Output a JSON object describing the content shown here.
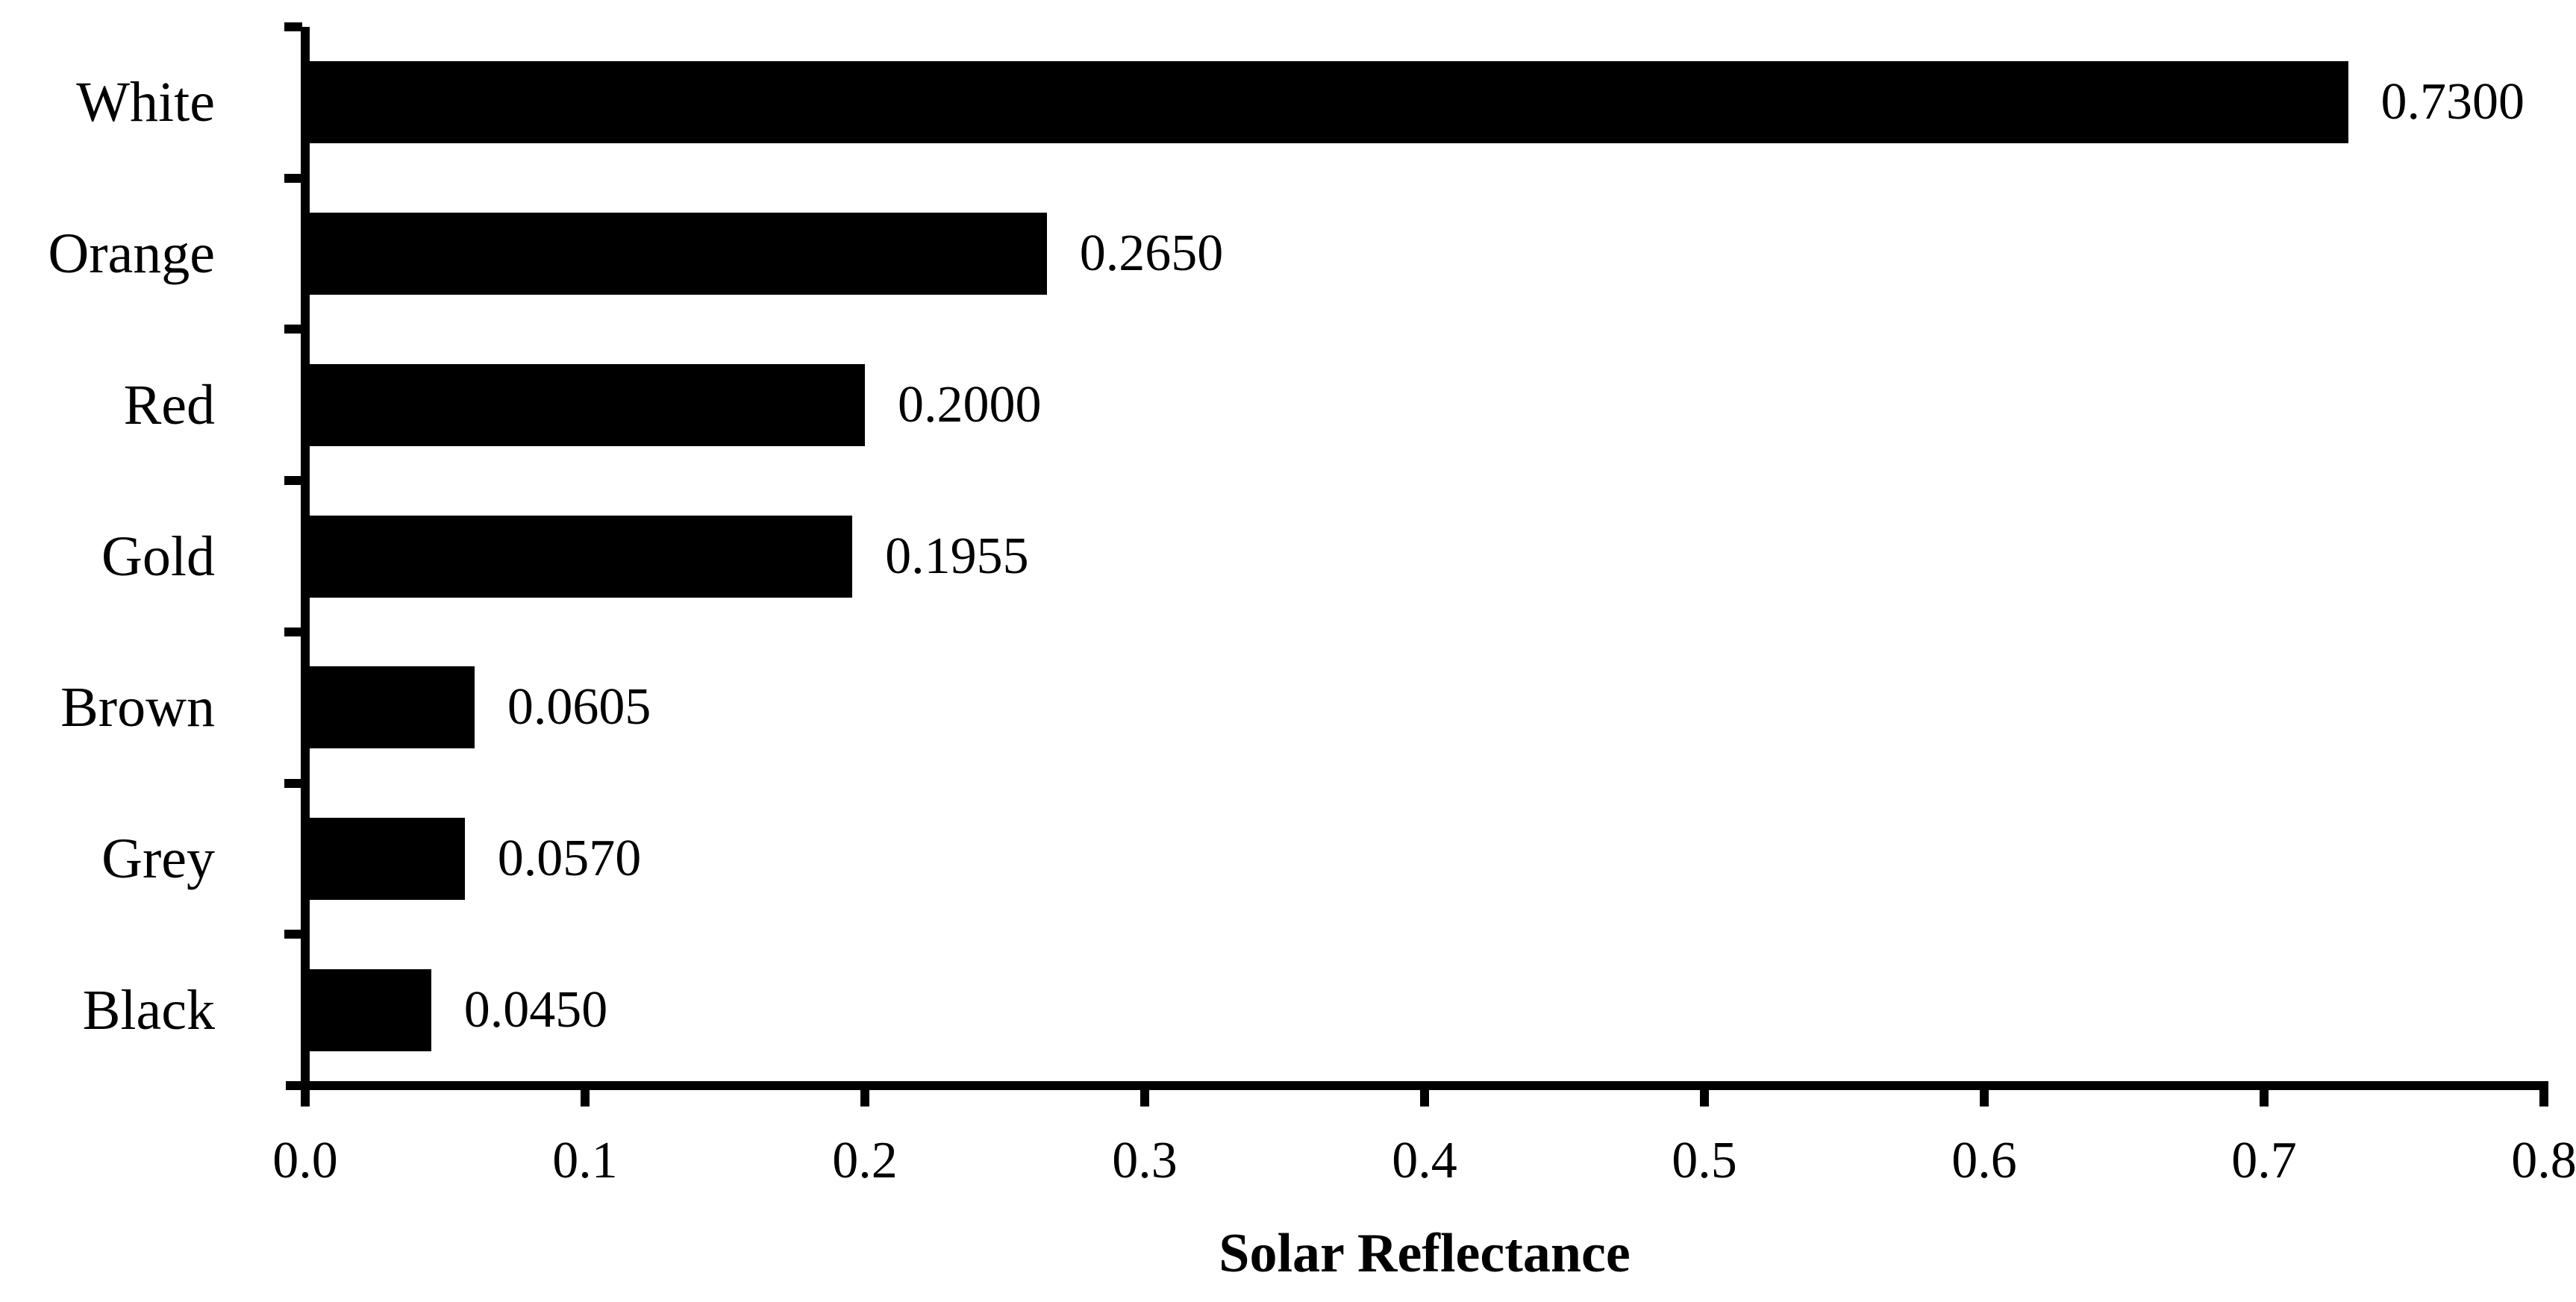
{
  "chart_data": {
    "type": "bar",
    "orientation": "horizontal",
    "title": "",
    "categories": [
      "White",
      "Orange",
      "Red",
      "Gold",
      "Brown",
      "Grey",
      "Black"
    ],
    "values": [
      0.73,
      0.265,
      0.2,
      0.1955,
      0.0605,
      0.057,
      0.045
    ],
    "value_labels": [
      "0.7300",
      "0.2650",
      "0.2000",
      "0.1955",
      "0.0605",
      "0.0570",
      "0.0450"
    ],
    "xlabel": "Solar Reflectance",
    "ylabel": "",
    "xlim": [
      0.0,
      0.8
    ],
    "x_tick_labels": [
      "0.0",
      "0.1",
      "0.2",
      "0.3",
      "0.4",
      "0.5",
      "0.6",
      "0.7",
      "0.8"
    ],
    "x_tick_values": [
      0.0,
      0.1,
      0.2,
      0.3,
      0.4,
      0.5,
      0.6,
      0.7,
      0.8
    ],
    "grid": false,
    "legend": false,
    "bar_color": "#000000",
    "text_color": "#000000",
    "background_color": "#ffffff"
  }
}
